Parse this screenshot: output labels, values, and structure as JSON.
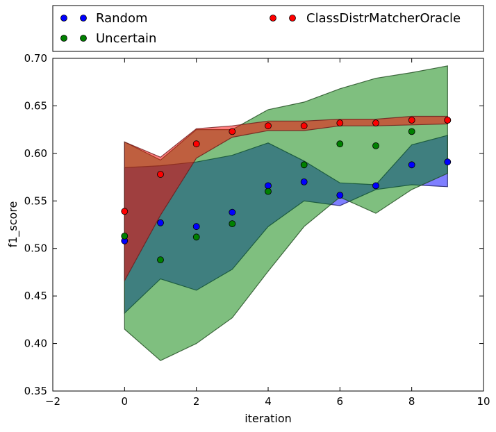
{
  "chart_data": {
    "type": "scatter",
    "xlabel": "iteration",
    "ylabel": "f1_score",
    "xlim": [
      -2,
      10
    ],
    "ylim": [
      0.35,
      0.7
    ],
    "xticks": [
      "−2",
      "0",
      "2",
      "4",
      "6",
      "8",
      "10"
    ],
    "yticks": [
      "0.35",
      "0.40",
      "0.45",
      "0.50",
      "0.55",
      "0.60",
      "0.65",
      "0.70"
    ],
    "legend_position": "top, outside plot, 2 columns",
    "x": [
      0,
      1,
      2,
      3,
      4,
      5,
      6,
      7,
      8,
      9
    ],
    "series": [
      {
        "name": "Random",
        "color": "#0000ff",
        "mean": [
          0.508,
          0.527,
          0.523,
          0.538,
          0.566,
          0.57,
          0.556,
          0.566,
          0.588,
          0.591
        ],
        "band_low": [
          0.432,
          0.468,
          0.456,
          0.478,
          0.523,
          0.55,
          0.545,
          0.562,
          0.567,
          0.565
        ],
        "band_high": [
          0.585,
          0.587,
          0.591,
          0.598,
          0.611,
          0.592,
          0.569,
          0.567,
          0.609,
          0.619
        ]
      },
      {
        "name": "Uncertain",
        "color": "#008000",
        "mean": [
          0.513,
          0.488,
          0.512,
          0.526,
          0.56,
          0.588,
          0.61,
          0.608,
          0.623,
          0.635
        ],
        "band_low": [
          0.415,
          0.382,
          0.4,
          0.427,
          0.476,
          0.523,
          0.554,
          0.537,
          0.562,
          0.579
        ],
        "band_high": [
          0.612,
          0.593,
          0.625,
          0.625,
          0.646,
          0.654,
          0.668,
          0.679,
          0.685,
          0.692
        ]
      },
      {
        "name": "ClassDistrMatcherOracle",
        "color": "#ff0000",
        "mean": [
          0.539,
          0.578,
          0.61,
          0.623,
          0.629,
          0.629,
          0.632,
          0.632,
          0.635,
          0.635
        ],
        "band_low": [
          0.466,
          0.535,
          0.595,
          0.617,
          0.624,
          0.624,
          0.629,
          0.629,
          0.63,
          0.631
        ],
        "band_high": [
          0.612,
          0.596,
          0.626,
          0.629,
          0.634,
          0.634,
          0.636,
          0.636,
          0.639,
          0.639
        ]
      }
    ]
  }
}
